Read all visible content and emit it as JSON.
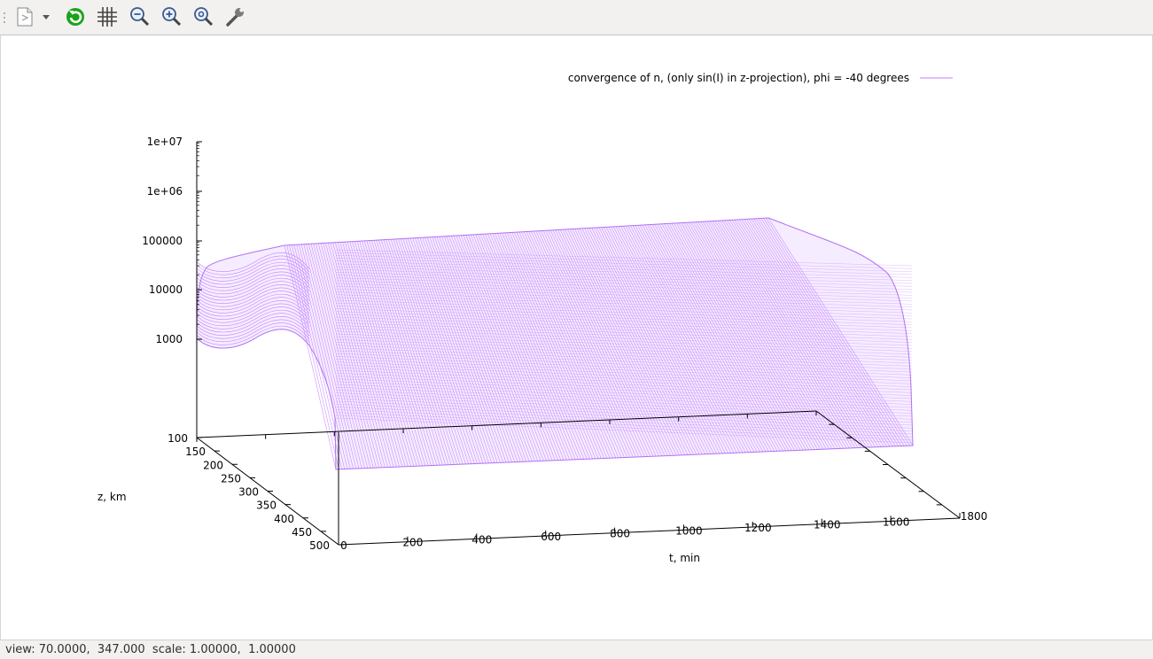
{
  "toolbar": {
    "buttons": [
      {
        "name": "export-icon"
      },
      {
        "name": "dropdown-arrow-icon"
      },
      {
        "name": "replot-icon"
      },
      {
        "name": "grid-icon"
      },
      {
        "name": "zoom-out-icon"
      },
      {
        "name": "zoom-in-icon"
      },
      {
        "name": "zoom-reset-icon"
      },
      {
        "name": "settings-wrench-icon"
      }
    ]
  },
  "status": {
    "text": "view: 70.0000,  347.000  scale: 1.00000,  1.00000"
  },
  "chart_data": {
    "type": "surface",
    "legend": {
      "label": "convergence of n, (only sin(I) in z-projection), phi = -40 degrees",
      "color": "#c080ff",
      "position": "top-right"
    },
    "xlabel": "t, min",
    "ylabel": "z, km",
    "zscale": "log",
    "xlim": [
      0,
      1800
    ],
    "ylim": [
      100,
      500
    ],
    "zlim": [
      1,
      10000000
    ],
    "xticks": [
      "0",
      "200",
      "400",
      "600",
      "800",
      "1000",
      "1200",
      "1400",
      "1600",
      "1800"
    ],
    "yticks": [
      "100",
      "150",
      "200",
      "250",
      "300",
      "350",
      "400",
      "450",
      "500"
    ],
    "zticks": [
      "1000",
      "10000",
      "100000",
      "1e+06",
      "1e+07"
    ],
    "view": {
      "rot_x": 70,
      "rot_z": 347
    },
    "surface_color": "#c080ff",
    "grid": false
  }
}
